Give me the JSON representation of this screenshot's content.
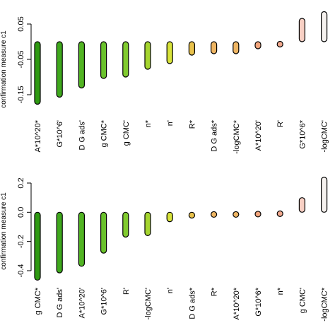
{
  "chart_data": [
    {
      "type": "bar",
      "ylabel": "confirmation measure c1",
      "ylim": [
        -0.18,
        0.07
      ],
      "yticks": [
        "0.05",
        "-0.05",
        "-0.15"
      ],
      "ytick_values": [
        0.05,
        -0.05,
        -0.15
      ],
      "categories": [
        "A*10^20*",
        "G*10^6'",
        "D G ads'",
        "g CMC*",
        "g CMC'",
        "n*",
        "n'",
        "R*",
        "D G ads*",
        "-logCMC*",
        "A*10^20'",
        "R'",
        "G*10^6*",
        "-logCMC'"
      ],
      "values": [
        -0.177,
        -0.157,
        -0.131,
        -0.104,
        -0.1,
        -0.078,
        -0.062,
        -0.038,
        -0.034,
        -0.034,
        -0.02,
        -0.014,
        0.066,
        0.085
      ],
      "colors": [
        "#2f9a12",
        "#3fa81d",
        "#52b423",
        "#6ac12c",
        "#81cb2f",
        "#a5d52f",
        "#d8e33a",
        "#e9c24c",
        "#eeb563",
        "#eeb563",
        "#f2a57c",
        "#f2a98e",
        "#f8d0c4",
        "#f6f2ef"
      ]
    },
    {
      "type": "bar",
      "ylabel": "confirmation measure c1",
      "ylim": [
        -0.47,
        0.24
      ],
      "yticks": [
        "0.2",
        "0.0",
        "-0.2",
        "-0.4"
      ],
      "ytick_values": [
        0.2,
        0.0,
        -0.2,
        -0.4
      ],
      "categories": [
        "g CMC*",
        "D G ads'",
        "A*10^20'",
        "G*10^6'",
        "R'",
        "-logCMC'",
        "n'",
        "D G ads*",
        "R*",
        "A*10^20*",
        "G*10^6*",
        "n*",
        "g CMC'",
        "-logCMC*"
      ],
      "values": [
        -0.465,
        -0.415,
        -0.37,
        -0.28,
        -0.17,
        -0.16,
        -0.065,
        -0.04,
        -0.03,
        -0.03,
        -0.025,
        -0.02,
        0.1,
        0.24
      ],
      "colors": [
        "#2f9a12",
        "#3fa81d",
        "#52b423",
        "#6ac12c",
        "#81cb2f",
        "#a5d52f",
        "#d8e33a",
        "#e9c24c",
        "#eeb563",
        "#eeb563",
        "#f2a57c",
        "#f2a98e",
        "#f8d0c4",
        "#f6f2ef"
      ]
    }
  ]
}
